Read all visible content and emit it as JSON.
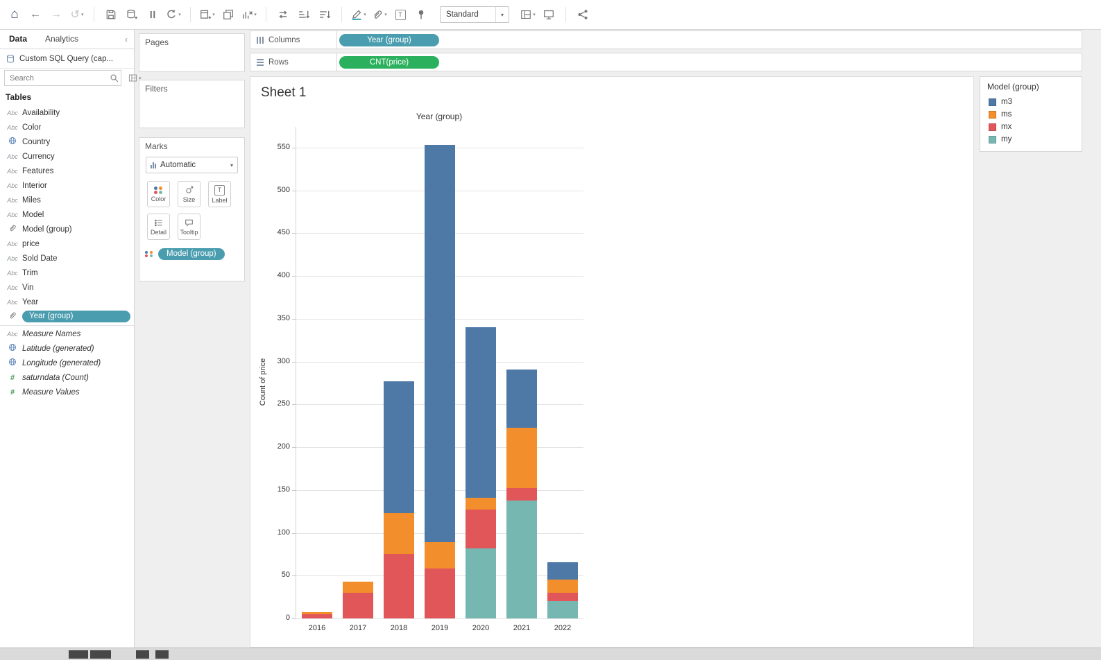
{
  "toolbar": {
    "fit_value": "Standard",
    "items": [
      {
        "name": "home"
      },
      {
        "name": "undo"
      },
      {
        "name": "redo",
        "dim": true
      },
      {
        "name": "replay",
        "dim": true,
        "caret": true
      },
      {
        "sep": true
      },
      {
        "name": "save"
      },
      {
        "name": "new-data-source"
      },
      {
        "name": "pause-auto-updates"
      },
      {
        "name": "run-auto-updates",
        "caret": true
      },
      {
        "sep": true
      },
      {
        "name": "new-worksheet",
        "caret": true
      },
      {
        "name": "duplicate"
      },
      {
        "name": "clear-sheet",
        "caret": true
      },
      {
        "sep": true
      },
      {
        "name": "swap-rows-columns"
      },
      {
        "name": "sort-ascending"
      },
      {
        "name": "sort-descending"
      },
      {
        "sep": true
      },
      {
        "name": "highlight",
        "caret": true
      },
      {
        "name": "group-members",
        "caret": true
      },
      {
        "name": "show-mark-labels"
      },
      {
        "name": "fix-axes"
      },
      {
        "fit": true
      },
      {
        "name": "show-me",
        "caret": true
      },
      {
        "name": "presentation-mode"
      },
      {
        "sep": true
      },
      {
        "name": "share"
      }
    ]
  },
  "sidebar": {
    "tabs": [
      {
        "label": "Data",
        "active": true
      },
      {
        "label": "Analytics",
        "active": false
      }
    ],
    "datasource": "Custom SQL Query (cap...",
    "search_placeholder": "Search",
    "tables_header": "Tables",
    "fields": [
      {
        "type": "abc",
        "label": "Availability"
      },
      {
        "type": "abc",
        "label": "Color"
      },
      {
        "type": "globe",
        "label": "Country"
      },
      {
        "type": "abc",
        "label": "Currency"
      },
      {
        "type": "abc",
        "label": "Features"
      },
      {
        "type": "abc",
        "label": "Interior"
      },
      {
        "type": "abc",
        "label": "Miles"
      },
      {
        "type": "abc",
        "label": "Model"
      },
      {
        "type": "paperclip",
        "label": "Model (group)"
      },
      {
        "type": "abc",
        "label": "price"
      },
      {
        "type": "abc",
        "label": "Sold Date"
      },
      {
        "type": "abc",
        "label": "Trim"
      },
      {
        "type": "abc",
        "label": "Vin"
      },
      {
        "type": "abc",
        "label": "Year"
      },
      {
        "type": "paperclip",
        "label": "Year (group)",
        "selected": true
      },
      {
        "type": "abc",
        "label": "Measure Names",
        "italic": true,
        "divider": true
      },
      {
        "type": "globe",
        "label": "Latitude (generated)",
        "italic": true
      },
      {
        "type": "globe",
        "label": "Longitude (generated)",
        "italic": true
      },
      {
        "type": "hash",
        "label": "saturndata (Count)",
        "italic": true
      },
      {
        "type": "hash",
        "label": "Measure Values",
        "italic": true
      }
    ]
  },
  "cards": {
    "pages_label": "Pages",
    "filters_label": "Filters",
    "marks": {
      "label": "Marks",
      "mark_type": "Automatic",
      "buttons": [
        "Color",
        "Size",
        "Label",
        "Detail",
        "Tooltip"
      ],
      "pill": "Model (group)"
    }
  },
  "shelves": {
    "columns_label": "Columns",
    "rows_label": "Rows",
    "columns_pill": "Year (group)",
    "rows_pill": "CNT(price)",
    "pill_colors": {
      "dimension": "#4A9DAE",
      "measure": "#2BB05D"
    }
  },
  "sheet": {
    "title": "Sheet 1"
  },
  "legend": {
    "title": "Model (group)",
    "items": [
      {
        "label": "m3",
        "color": "#4e79a7"
      },
      {
        "label": "ms",
        "color": "#f28e2b"
      },
      {
        "label": "mx",
        "color": "#e15759"
      },
      {
        "label": "my",
        "color": "#76b7b2"
      }
    ]
  },
  "chart_data": {
    "type": "bar",
    "stacked": true,
    "stack_order": "bottom-to-top",
    "title": "Year (group)",
    "xlabel": "",
    "ylabel": "Count of price",
    "categories": [
      "2016",
      "2017",
      "2018",
      "2019",
      "2020",
      "2021",
      "2022"
    ],
    "series": [
      {
        "name": "my",
        "color": "#76b7b2",
        "values": [
          0,
          0,
          0,
          0,
          82,
          138,
          20
        ]
      },
      {
        "name": "mx",
        "color": "#e15759",
        "values": [
          5,
          30,
          75,
          58,
          45,
          14,
          10
        ]
      },
      {
        "name": "ms",
        "color": "#f28e2b",
        "values": [
          2,
          13,
          48,
          31,
          14,
          71,
          15
        ]
      },
      {
        "name": "m3",
        "color": "#4e79a7",
        "values": [
          0,
          0,
          154,
          464,
          199,
          68,
          21
        ]
      }
    ],
    "totals": [
      7,
      43,
      277,
      553,
      340,
      291,
      66
    ],
    "ylim": [
      0,
      572
    ],
    "yticks": [
      0,
      50,
      100,
      150,
      200,
      250,
      300,
      350,
      400,
      450,
      500,
      550
    ],
    "grid": true,
    "legend_position": "right"
  }
}
